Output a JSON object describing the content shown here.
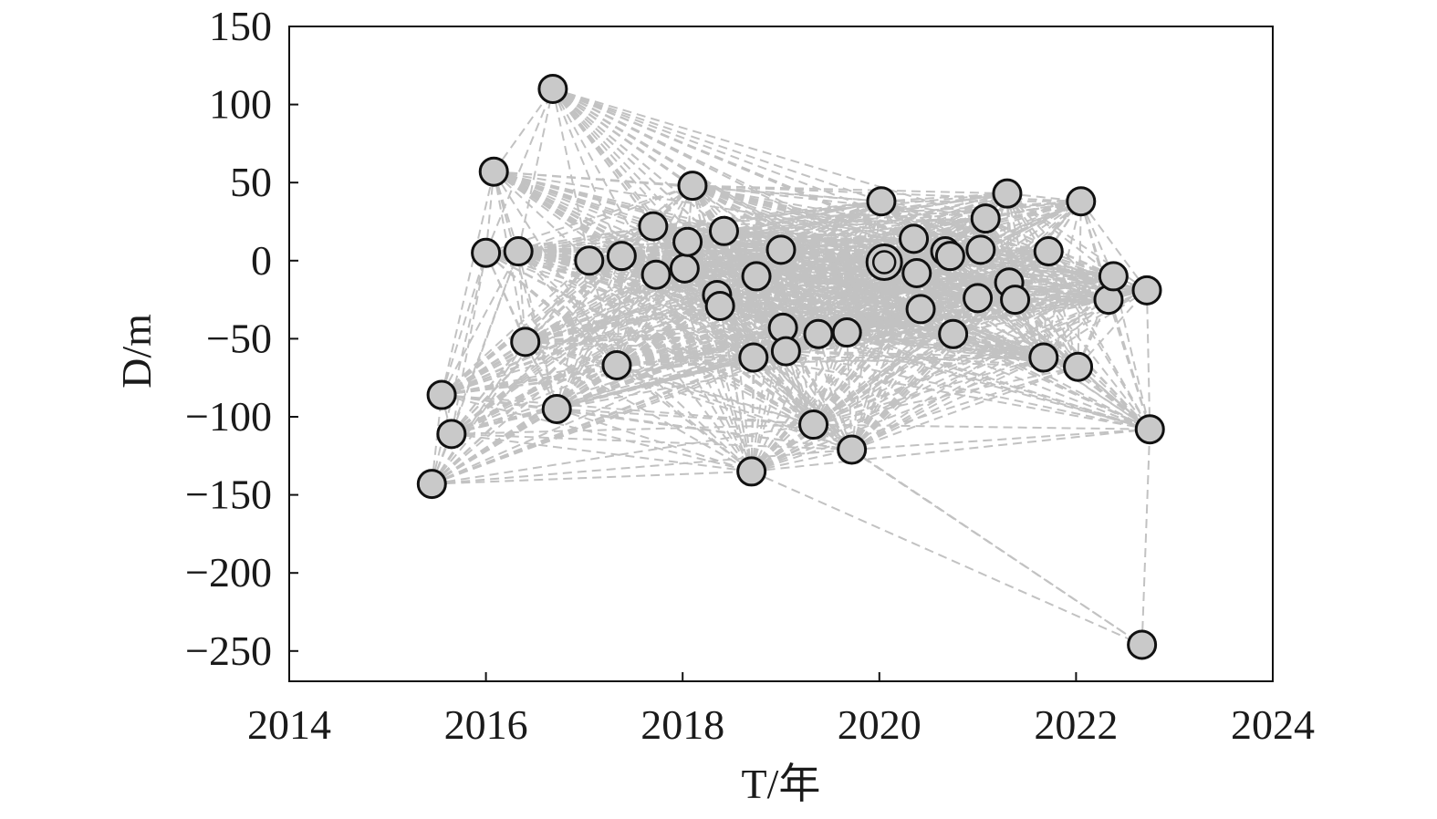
{
  "chart_data": {
    "type": "scatter",
    "xlabel": "T/年",
    "ylabel": "D/m",
    "xlim": [
      2014,
      2024
    ],
    "ylim": [
      -270,
      150
    ],
    "xticks": [
      2014,
      2016,
      2018,
      2020,
      2022,
      2024
    ],
    "yticks": [
      150,
      100,
      50,
      0,
      -50,
      -100,
      -150,
      -200,
      -250
    ],
    "grid": false,
    "reference_point": {
      "x": 2020.05,
      "y": -1
    },
    "points": [
      {
        "x": 2015.45,
        "y": -143
      },
      {
        "x": 2015.55,
        "y": -86
      },
      {
        "x": 2015.65,
        "y": -111
      },
      {
        "x": 2016.0,
        "y": 5
      },
      {
        "x": 2016.08,
        "y": 57
      },
      {
        "x": 2016.33,
        "y": 6
      },
      {
        "x": 2016.4,
        "y": -52
      },
      {
        "x": 2016.68,
        "y": 110
      },
      {
        "x": 2016.72,
        "y": -95
      },
      {
        "x": 2017.05,
        "y": 0
      },
      {
        "x": 2017.33,
        "y": -67
      },
      {
        "x": 2017.38,
        "y": 3
      },
      {
        "x": 2017.7,
        "y": 22
      },
      {
        "x": 2017.73,
        "y": -9
      },
      {
        "x": 2018.02,
        "y": -5
      },
      {
        "x": 2018.05,
        "y": 12
      },
      {
        "x": 2018.1,
        "y": 48
      },
      {
        "x": 2018.35,
        "y": -22
      },
      {
        "x": 2018.38,
        "y": -29
      },
      {
        "x": 2018.42,
        "y": 19
      },
      {
        "x": 2018.7,
        "y": -135
      },
      {
        "x": 2018.72,
        "y": -62
      },
      {
        "x": 2018.75,
        "y": -10
      },
      {
        "x": 2019.0,
        "y": 7
      },
      {
        "x": 2019.02,
        "y": -43
      },
      {
        "x": 2019.05,
        "y": -58
      },
      {
        "x": 2019.33,
        "y": -105
      },
      {
        "x": 2019.38,
        "y": -47
      },
      {
        "x": 2019.67,
        "y": -46
      },
      {
        "x": 2019.72,
        "y": -121
      },
      {
        "x": 2020.02,
        "y": 38
      },
      {
        "x": 2020.35,
        "y": 14
      },
      {
        "x": 2020.38,
        "y": -8
      },
      {
        "x": 2020.42,
        "y": -31
      },
      {
        "x": 2020.67,
        "y": 6
      },
      {
        "x": 2020.72,
        "y": 3
      },
      {
        "x": 2020.75,
        "y": -47
      },
      {
        "x": 2021.0,
        "y": -24
      },
      {
        "x": 2021.03,
        "y": 7
      },
      {
        "x": 2021.08,
        "y": 27
      },
      {
        "x": 2021.3,
        "y": 43
      },
      {
        "x": 2021.32,
        "y": -14
      },
      {
        "x": 2021.38,
        "y": -25
      },
      {
        "x": 2021.67,
        "y": -62
      },
      {
        "x": 2021.72,
        "y": 6
      },
      {
        "x": 2022.02,
        "y": -68
      },
      {
        "x": 2022.05,
        "y": 38
      },
      {
        "x": 2022.33,
        "y": -25
      },
      {
        "x": 2022.38,
        "y": -10
      },
      {
        "x": 2022.67,
        "y": -246
      },
      {
        "x": 2022.72,
        "y": -19
      },
      {
        "x": 2022.75,
        "y": -108
      }
    ]
  }
}
